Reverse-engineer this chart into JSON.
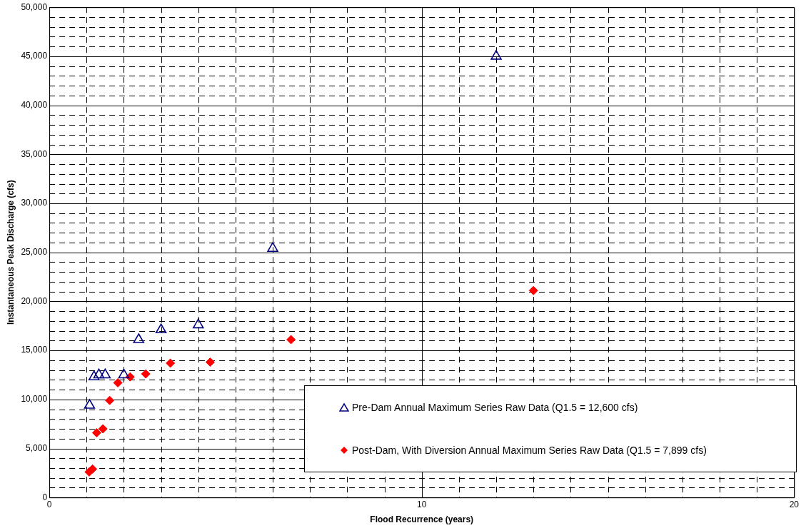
{
  "chart_data": {
    "type": "scatter",
    "xlabel": "Flood Recurrence (years)",
    "ylabel": "Instantaneous Peak Discharge (cfs)",
    "xlim": [
      0,
      20
    ],
    "ylim": [
      0,
      50000
    ],
    "xticks": [
      0,
      {
        "value": 1,
        "label": null
      },
      {
        "value": 2,
        "label": null
      },
      {
        "value": 3,
        "label": null
      },
      {
        "value": 4,
        "label": null
      },
      {
        "value": 5,
        "label": null
      },
      {
        "value": 6,
        "label": null
      },
      {
        "value": 7,
        "label": null
      },
      {
        "value": 8,
        "label": null
      },
      {
        "value": 9,
        "label": null
      },
      10,
      {
        "value": 11,
        "label": null
      },
      {
        "value": 12,
        "label": null
      },
      {
        "value": 13,
        "label": null
      },
      {
        "value": 14,
        "label": null
      },
      {
        "value": 15,
        "label": null
      },
      {
        "value": 16,
        "label": null
      },
      {
        "value": 17,
        "label": null
      },
      {
        "value": 18,
        "label": null
      },
      {
        "value": 19,
        "label": null
      },
      20
    ],
    "yticks": [
      0,
      {
        "value": 1000,
        "label": null
      },
      {
        "value": 2000,
        "label": null
      },
      {
        "value": 3000,
        "label": null
      },
      {
        "value": 4000,
        "label": null
      },
      {
        "value": 5000,
        "label": "5,000"
      },
      {
        "value": 6000,
        "label": null
      },
      {
        "value": 7000,
        "label": null
      },
      {
        "value": 8000,
        "label": null
      },
      {
        "value": 9000,
        "label": null
      },
      {
        "value": 10000,
        "label": "10,000"
      },
      {
        "value": 11000,
        "label": null
      },
      {
        "value": 12000,
        "label": null
      },
      {
        "value": 13000,
        "label": null
      },
      {
        "value": 14000,
        "label": null
      },
      {
        "value": 15000,
        "label": "15,000"
      },
      {
        "value": 16000,
        "label": null
      },
      {
        "value": 17000,
        "label": null
      },
      {
        "value": 18000,
        "label": null
      },
      {
        "value": 19000,
        "label": null
      },
      {
        "value": 20000,
        "label": "20,000"
      },
      {
        "value": 21000,
        "label": null
      },
      {
        "value": 22000,
        "label": null
      },
      {
        "value": 23000,
        "label": null
      },
      {
        "value": 24000,
        "label": null
      },
      {
        "value": 25000,
        "label": "25,000"
      },
      {
        "value": 26000,
        "label": null
      },
      {
        "value": 27000,
        "label": null
      },
      {
        "value": 28000,
        "label": null
      },
      {
        "value": 29000,
        "label": null
      },
      {
        "value": 30000,
        "label": "30,000"
      },
      {
        "value": 31000,
        "label": null
      },
      {
        "value": 32000,
        "label": null
      },
      {
        "value": 33000,
        "label": null
      },
      {
        "value": 34000,
        "label": null
      },
      {
        "value": 35000,
        "label": "35,000"
      },
      {
        "value": 36000,
        "label": null
      },
      {
        "value": 37000,
        "label": null
      },
      {
        "value": 38000,
        "label": null
      },
      {
        "value": 39000,
        "label": null
      },
      {
        "value": 40000,
        "label": "40,000"
      },
      {
        "value": 41000,
        "label": null
      },
      {
        "value": 42000,
        "label": null
      },
      {
        "value": 43000,
        "label": null
      },
      {
        "value": 44000,
        "label": null
      },
      {
        "value": 45000,
        "label": "45,000"
      },
      {
        "value": 46000,
        "label": null
      },
      {
        "value": 47000,
        "label": null
      },
      {
        "value": 48000,
        "label": null
      },
      {
        "value": 49000,
        "label": null
      },
      {
        "value": 50000,
        "label": "50,000"
      }
    ],
    "grid": true,
    "legend": "bottom right",
    "series": [
      {
        "name": "Pre-Dam Annual Maximum Series Raw Data (Q1.5 = 12,600 cfs)",
        "color": "#000080",
        "marker": "triangle",
        "x": [
          1.08,
          1.2,
          1.33,
          1.5,
          2.0,
          2.4,
          3.0,
          4.0,
          6.0,
          12.0
        ],
        "values": [
          9400,
          12300,
          12500,
          12500,
          12500,
          16100,
          17100,
          17600,
          25400,
          45000
        ]
      },
      {
        "name": "Post-Dam, With Diversion Annual Maximum Series Raw Data (Q1.5 = 7,899 cfs)",
        "color": "#ff0000",
        "marker": "diamond",
        "x": [
          1.07,
          1.16,
          1.27,
          1.44,
          1.62,
          1.84,
          2.17,
          2.59,
          3.25,
          4.32,
          6.49,
          13.0
        ],
        "values": [
          2600,
          2900,
          6600,
          7000,
          9900,
          11700,
          12300,
          12600,
          13700,
          13800,
          16100,
          21100
        ]
      }
    ]
  }
}
